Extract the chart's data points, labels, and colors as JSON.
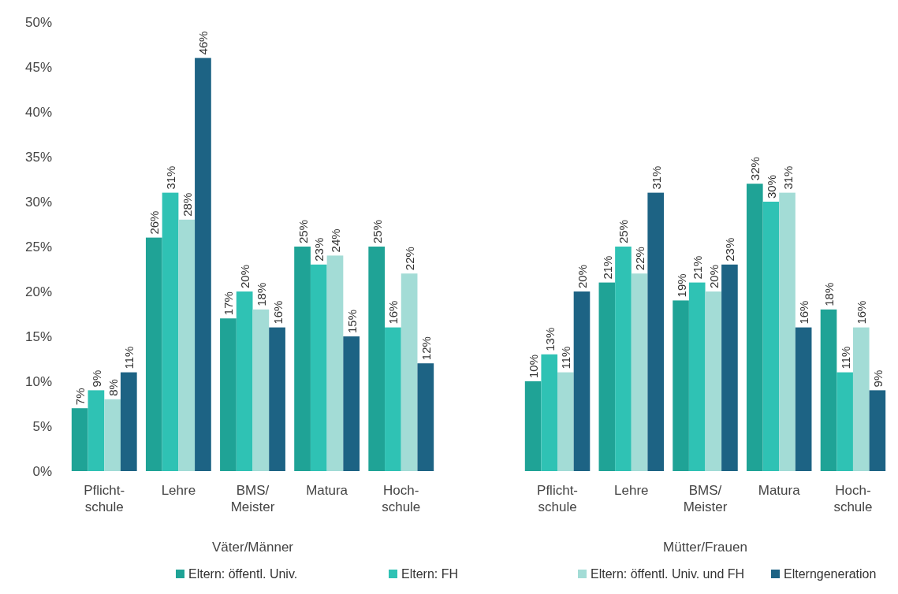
{
  "chart_data": [
    {
      "type": "bar",
      "categories": [
        "Pflicht-\nschule",
        "Lehre",
        "BMS/\nMeister",
        "Matura",
        "Hoch-\nschule"
      ],
      "xlabel": "Väter/Männer",
      "ylim": [
        0,
        50
      ],
      "yticks": [
        {
          "value": 0,
          "label": "0%"
        },
        {
          "value": 5,
          "label": "5%"
        },
        {
          "value": 10,
          "label": "10%"
        },
        {
          "value": 15,
          "label": "15%"
        },
        {
          "value": 20,
          "label": "20%"
        },
        {
          "value": 25,
          "label": "25%"
        },
        {
          "value": 30,
          "label": "30%"
        },
        {
          "value": 35,
          "label": "35%"
        },
        {
          "value": 40,
          "label": "40%"
        },
        {
          "value": 45,
          "label": "45%"
        },
        {
          "value": 50,
          "label": "50%"
        }
      ],
      "legend": "bottom",
      "series": [
        {
          "name": "Eltern: öffentl. Univ.",
          "color": "#1fa396",
          "values": [
            7,
            26,
            17,
            25,
            25
          ],
          "value_labels": [
            "7%",
            "26%",
            "17%",
            "25%",
            "25%"
          ]
        },
        {
          "name": "Eltern: FH",
          "color": "#2fc2b4",
          "values": [
            9,
            31,
            20,
            23,
            16
          ],
          "value_labels": [
            "9%",
            "31%",
            "20%",
            "23%",
            "16%"
          ]
        },
        {
          "name": "Eltern: öffentl. Univ. und FH",
          "color": "#a3dcd6",
          "values": [
            8,
            28,
            18,
            24,
            22
          ],
          "value_labels": [
            "8%",
            "28%",
            "18%",
            "24%",
            "22%"
          ]
        },
        {
          "name": "Elterngeneration",
          "color": "#1d6384",
          "values": [
            11,
            46,
            16,
            15,
            12
          ],
          "value_labels": [
            "11%",
            "46%",
            "16%",
            "15%",
            "12%"
          ]
        }
      ]
    },
    {
      "type": "bar",
      "categories": [
        "Pflicht-\nschule",
        "Lehre",
        "BMS/\nMeister",
        "Matura",
        "Hoch-\nschule"
      ],
      "xlabel": "Mütter/Frauen",
      "ylim": [
        0,
        50
      ],
      "tick_labels": "x",
      "series": [
        {
          "color": "#1fa396",
          "values": [
            10,
            21,
            19,
            32,
            18
          ],
          "value_labels": [
            "10%",
            "21%",
            "19%",
            "32%",
            "18%"
          ]
        },
        {
          "color": "#2fc2b4",
          "values": [
            13,
            25,
            21,
            30,
            11
          ],
          "value_labels": [
            "13%",
            "25%",
            "21%",
            "30%",
            "11%"
          ]
        },
        {
          "color": "#a3dcd6",
          "values": [
            11,
            22,
            20,
            31,
            16
          ],
          "value_labels": [
            "11%",
            "22%",
            "20%",
            "31%",
            "16%"
          ]
        },
        {
          "color": "#1d6384",
          "values": [
            20,
            31,
            23,
            16,
            9
          ],
          "value_labels": [
            "20%",
            "31%",
            "23%",
            "16%",
            "9%"
          ]
        }
      ]
    }
  ]
}
